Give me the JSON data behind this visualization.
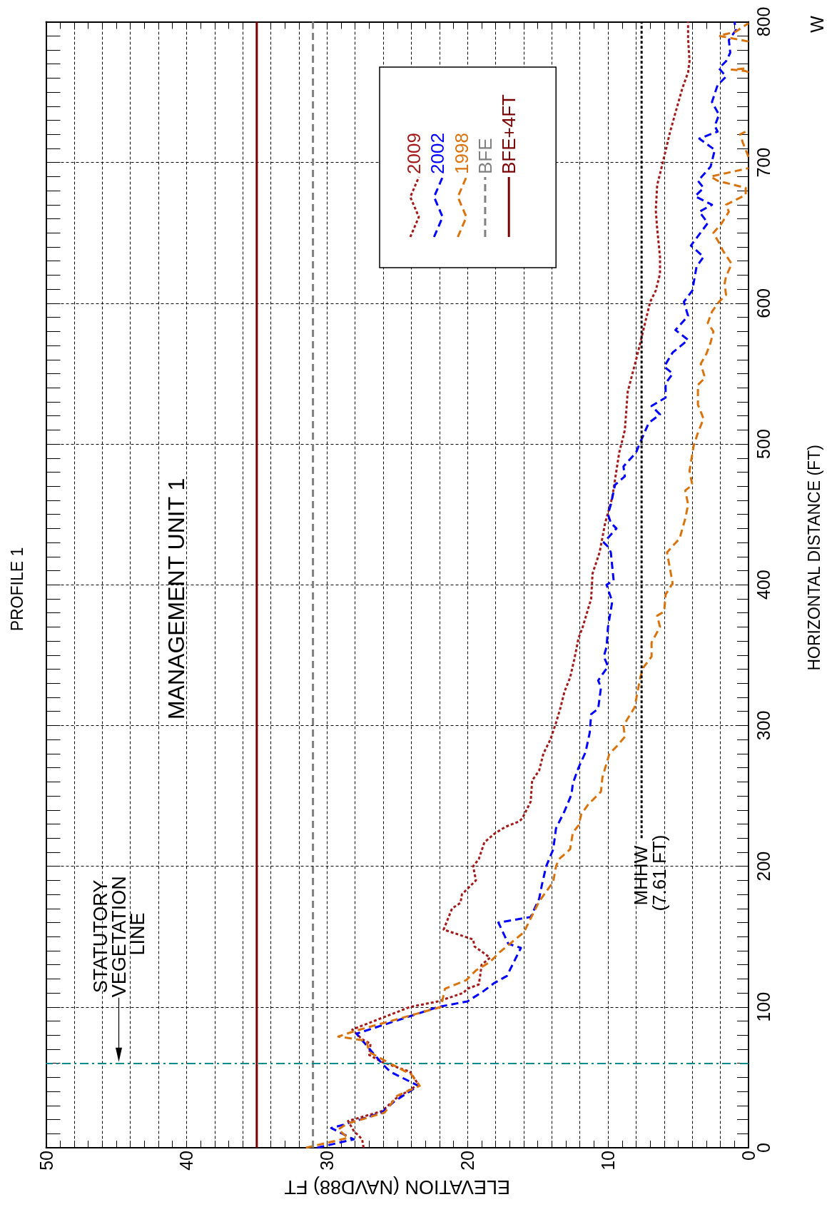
{
  "chart_data": {
    "type": "line",
    "title": "PROFILE 1",
    "xlabel": "ELEVATION (NAVD88) FT",
    "ylabel": "HORIZONTAL DISTANCE (FT)",
    "xlim": [
      50,
      0
    ],
    "ylim": [
      0,
      800
    ],
    "xticks": [
      50,
      {
        "value": 48,
        "label": null
      },
      {
        "value": 46,
        "label": null
      },
      {
        "value": 44,
        "label": null
      },
      {
        "value": 42,
        "label": null
      },
      40,
      {
        "value": 38,
        "label": null
      },
      {
        "value": 36,
        "label": null
      },
      {
        "value": 34,
        "label": null
      },
      {
        "value": 32,
        "label": null
      },
      30,
      {
        "value": 28,
        "label": null
      },
      {
        "value": 26,
        "label": null
      },
      {
        "value": 24,
        "label": null
      },
      {
        "value": 22,
        "label": null
      },
      20,
      {
        "value": 18,
        "label": null
      },
      {
        "value": 16,
        "label": null
      },
      {
        "value": 14,
        "label": null
      },
      {
        "value": 12,
        "label": null
      },
      10,
      {
        "value": 8,
        "label": null
      },
      {
        "value": 6,
        "label": null
      },
      {
        "value": 4,
        "label": null
      },
      {
        "value": 2,
        "label": null
      },
      0
    ],
    "yticks": [
      0,
      100,
      200,
      300,
      400,
      500,
      600,
      700,
      800
    ],
    "grid": true,
    "legend": "top",
    "marker": "none",
    "series": [
      {
        "name": "2009",
        "color": "#a31a1a",
        "line_style": "dotted",
        "x": [
          27.4,
          27.5,
          28.1,
          28.5,
          26.1,
          25.1,
          23.5,
          24.1,
          26.1,
          27.0,
          26.9,
          27.5,
          28.2,
          24.1,
          22.1,
          20.3,
          20.0,
          19.2,
          19.1,
          19.0,
          18.4,
          18.8,
          19.5,
          19.6,
          21.7,
          21.1,
          20.5,
          20.4,
          20.0,
          19.4,
          19.6,
          19.2,
          18.8,
          18.1,
          17.3,
          16.3,
          16.1,
          15.5,
          15.4,
          14.9,
          14.6,
          14.1,
          13.7,
          13.4,
          13.1,
          12.7,
          12.4,
          12.1,
          11.8,
          11.2,
          11.1,
          10.6,
          10.2,
          9.7,
          9.2,
          8.8,
          8.6,
          8.0,
          7.7,
          7.0,
          6.6,
          6.3,
          6.3,
          6.5,
          6.6,
          6.5,
          6.1,
          5.6,
          5.1,
          4.7,
          4.3,
          4.2,
          4.3,
          4.3
        ],
        "values": [
          0,
          6,
          12,
          19,
          26,
          35,
          45,
          54,
          61,
          66,
          74,
          77,
          84,
          100,
          104,
          110,
          113,
          116,
          122,
          130,
          135,
          138,
          143,
          148,
          155,
          170,
          174,
          180,
          184,
          190,
          200,
          205,
          217,
          223,
          228,
          232,
          234,
          246,
          261,
          268,
          280,
          290,
          302,
          312,
          324,
          334,
          347,
          362,
          370,
          390,
          408,
          423,
          444,
          462,
          494,
          510,
          537,
          560,
          572,
          601,
          609,
          621,
          633,
          653,
          666,
          684,
          700,
          721,
          739,
          753,
          764,
          772,
          788,
          800
        ]
      },
      {
        "name": "2002",
        "color": "#0000ff",
        "line_style": "dashed",
        "x": [
          30.7,
          28.1,
          29.7,
          28.6,
          26.1,
          25.2,
          23.5,
          25.5,
          26.1,
          27.9,
          22.1,
          20.0,
          18.9,
          18.1,
          17.2,
          16.2,
          17.1,
          17.8,
          15.5,
          14.9,
          14.7,
          14.4,
          13.9,
          13.7,
          13.1,
          12.6,
          12.5,
          12.1,
          11.6,
          11.3,
          11.2,
          10.7,
          10.5,
          10.7,
          10.0,
          10.3,
          10.1,
          10.0,
          9.7,
          10.1,
          9.6,
          9.8,
          10.0,
          10.3,
          9.4,
          9.8,
          10.0,
          9.8,
          9.5,
          8.8,
          8.9,
          8.0,
          7.8,
          7.1,
          6.3,
          6.9,
          5.9,
          5.9,
          5.4,
          6.0,
          5.4,
          4.3,
          5.2,
          4.3,
          4.6,
          4.0,
          3.7,
          3.2,
          4.1,
          2.9,
          3.5,
          2.6,
          3.8,
          3.2,
          3.6,
          2.7,
          2.4,
          3.5,
          2.2,
          2.4,
          2.1,
          2.6,
          2.2,
          1.6,
          2.1,
          1.6,
          1.3,
          1.4,
          0.9,
          1.0
        ],
        "values": [
          0,
          6,
          14,
          17,
          25,
          33,
          44,
          54,
          60,
          81,
          100,
          104,
          111,
          117,
          122,
          142,
          145,
          160,
          164,
          177,
          187,
          200,
          212,
          227,
          239,
          251,
          259,
          270,
          281,
          295,
          308,
          312,
          327,
          332,
          342,
          349,
          356,
          370,
          388,
          400,
          403,
          423,
          427,
          430,
          440,
          444,
          450,
          457,
          471,
          477,
          484,
          494,
          499,
          515,
          521,
          527,
          533,
          543,
          550,
          555,
          565,
          574,
          581,
          591,
          601,
          609,
          626,
          633,
          641,
          657,
          665,
          670,
          676,
          682,
          687,
          697,
          709,
          717,
          722,
          726,
          734,
          743,
          755,
          761,
          767,
          772,
          778,
          787,
          794,
          800
        ]
      },
      {
        "name": "1998",
        "color": "#d9730d",
        "line_style": "dashed",
        "x": [
          31.5,
          28.5,
          29.2,
          28.6,
          25.9,
          25.0,
          23.4,
          24.0,
          25.9,
          27.0,
          27.2,
          29.2,
          28.0,
          21.9,
          21.6,
          20.1,
          19.4,
          18.4,
          17.7,
          16.0,
          14.9,
          13.9,
          13.7,
          13.5,
          12.7,
          12.5,
          12.1,
          11.9,
          11.4,
          10.5,
          10.4,
          9.9,
          9.4,
          8.8,
          8.9,
          8.1,
          7.9,
          7.7,
          7.5,
          6.9,
          6.9,
          6.3,
          6.5,
          6.0,
          5.9,
          5.4,
          5.8,
          4.9,
          4.5,
          4.3,
          4.5,
          4.0,
          4.2,
          3.9,
          3.6,
          3.2,
          3.6,
          3.6,
          3.1,
          3.4,
          3.0,
          2.7,
          2.5,
          2.9,
          2.6,
          2.1,
          1.6,
          1.7,
          1.6,
          1.2,
          1.8,
          2.1,
          2.5,
          1.9,
          1.4,
          1.6,
          0.2,
          0.2,
          1.0,
          2.2,
          2.7,
          0.0,
          null,
          0.0,
          0.4,
          0.6,
          0.0,
          null,
          0.0,
          0.2,
          1.2,
          0.0,
          null,
          0.0,
          2.1,
          0.9,
          0.0
        ],
        "values": [
          0,
          7,
          13,
          17,
          25,
          37,
          44,
          52,
          62,
          68,
          76,
          79,
          83,
          100,
          113,
          119,
          126,
          132,
          139,
          153,
          175,
          189,
          200,
          205,
          212,
          224,
          229,
          237,
          244,
          253,
          263,
          280,
          285,
          292,
          300,
          313,
          324,
          334,
          341,
          349,
          359,
          370,
          378,
          381,
          393,
          401,
          423,
          433,
          447,
          457,
          467,
          471,
          481,
          499,
          508,
          518,
          528,
          542,
          547,
          557,
          564,
          572,
          580,
          586,
          594,
          601,
          606,
          614,
          619,
          628,
          637,
          643,
          650,
          657,
          665,
          670,
          677,
          682,
          684,
          687,
          690,
          696,
          null,
          704,
          714,
          720,
          723,
          null,
          764,
          765,
          766,
          767,
          null,
          786,
          790,
          793,
          799
        ]
      },
      {
        "name": "BFE",
        "color": "#808080",
        "line_style": "dashed",
        "x": [
          31,
          31
        ],
        "values": [
          0,
          800
        ]
      },
      {
        "name": "BFE+4FT",
        "color": "#780000",
        "line_style": "solid",
        "x": [
          35,
          35
        ],
        "values": [
          0,
          800
        ]
      },
      {
        "color": "#000000",
        "line_style": "dotted",
        "x": [
          7.61,
          7.61
        ],
        "values": [
          220,
          800
        ]
      }
    ],
    "ref_lines": [
      {
        "axis": "y",
        "value": 60,
        "color": "#008b8b",
        "line_style": "dashed"
      }
    ],
    "annotations": [
      "MANAGEMENT UNIT 1",
      "MHHW (7.61 FT)",
      "W",
      "STATUTORY VEGETATION LINE"
    ]
  }
}
